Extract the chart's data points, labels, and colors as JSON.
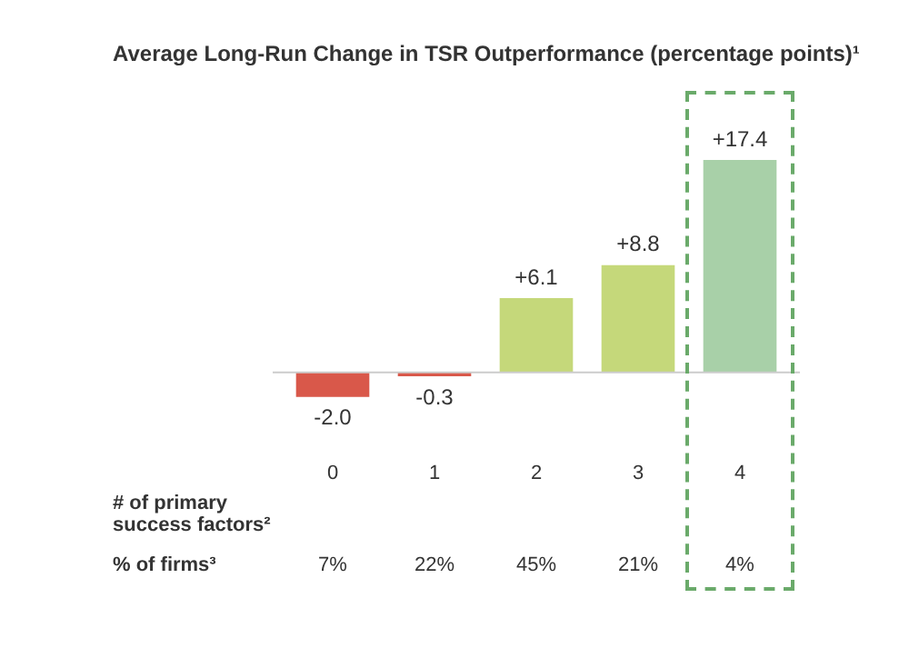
{
  "chart_data": {
    "type": "bar",
    "title": "Average Long-Run Change in TSR Outperformance (percentage points)¹",
    "xlabel": "# of primary success factors²",
    "categories": [
      "0",
      "1",
      "2",
      "3",
      "4"
    ],
    "values": [
      -2.0,
      -0.3,
      6.1,
      8.8,
      17.4
    ],
    "colors": [
      "#d9584a",
      "#d9584a",
      "#c5d87a",
      "#c5d87a",
      "#a8d0a8"
    ],
    "value_labels": [
      "-2.0",
      "-0.3",
      "+6.1",
      "+8.8",
      "+17.4"
    ],
    "annotations": [
      "% of firms³",
      "7%",
      "22%",
      "45%",
      "21%",
      "4%"
    ],
    "grid": false,
    "legend": false
  }
}
